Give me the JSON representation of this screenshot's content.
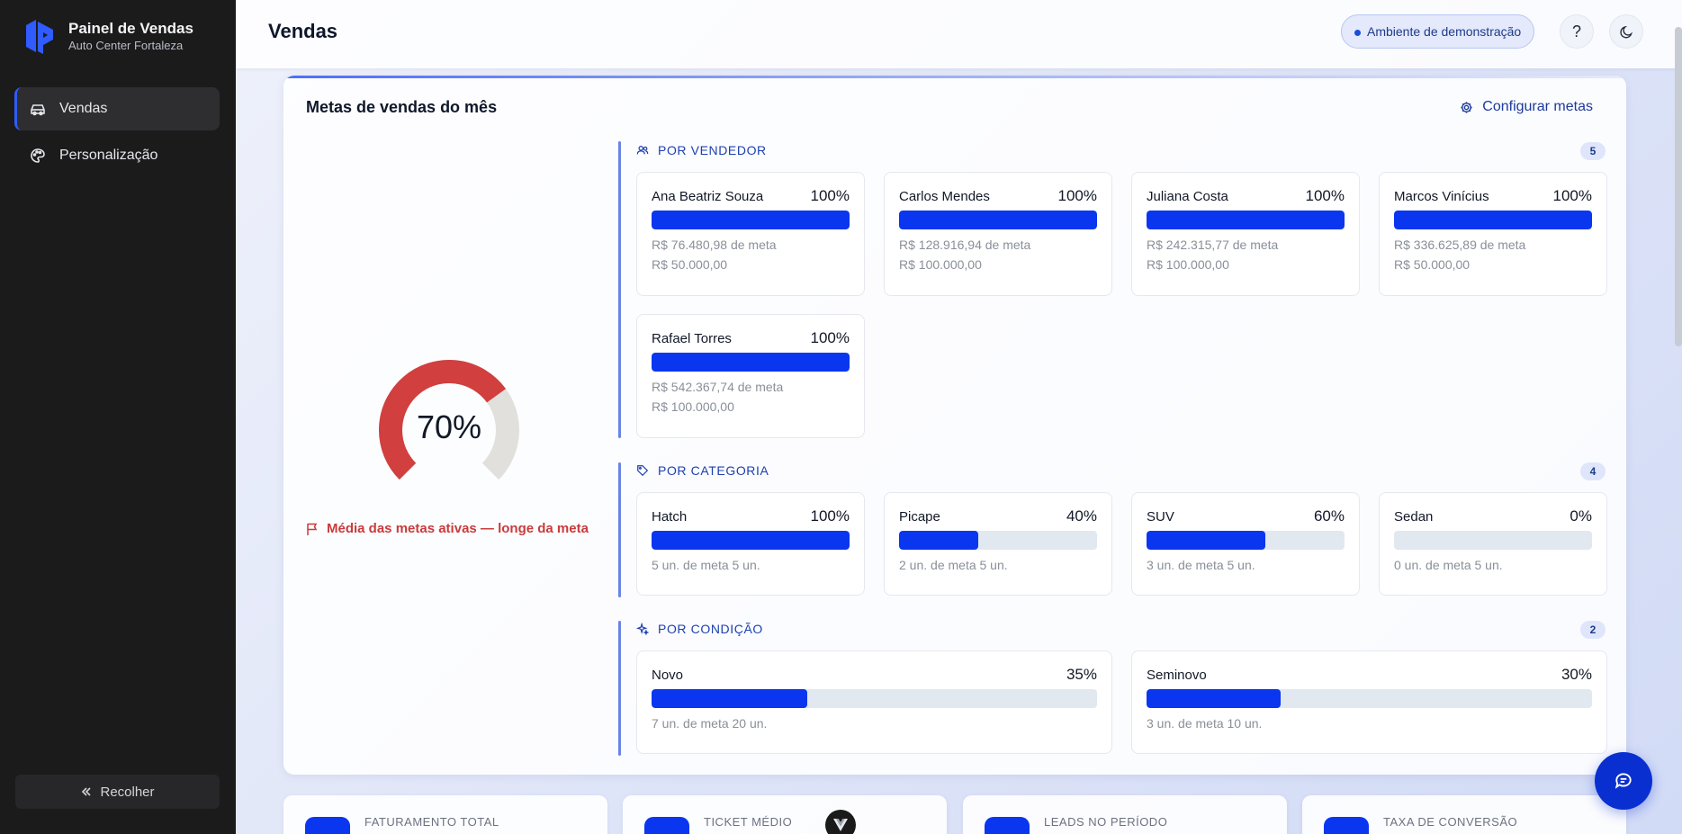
{
  "brand": {
    "title": "Painel de Vendas",
    "subtitle": "Auto Center Fortaleza",
    "icon": "logo-icon"
  },
  "sidebar": {
    "items": [
      {
        "label": "Vendas",
        "icon": "car-icon",
        "active": true
      },
      {
        "label": "Personalização",
        "icon": "palette-icon",
        "active": false
      }
    ],
    "collapse_label": "Recolher"
  },
  "header": {
    "title": "Vendas",
    "env_badge": "Ambiente de demonstração",
    "help_icon": "help-icon",
    "theme_icon": "moon-icon"
  },
  "goals": {
    "title": "Metas de vendas do mês",
    "config_label": "Configurar metas",
    "average_pct": "70%",
    "average_fraction": 0.7,
    "status_text": "Média das metas ativas — longe da meta",
    "colors": {
      "accent": "#0a36ef",
      "gauge_fill": "#d13f3f",
      "gauge_track": "#e2e0dc",
      "status": "#c93b3b"
    },
    "by_seller": {
      "heading": "POR VENDEDOR",
      "count": "5",
      "items": [
        {
          "name": "Ana Beatriz Souza",
          "pct": "100%",
          "fraction": 1.0,
          "line1": "R$ 76.480,98 de meta",
          "line2": "R$ 50.000,00"
        },
        {
          "name": "Carlos Mendes",
          "pct": "100%",
          "fraction": 1.0,
          "line1": "R$ 128.916,94 de meta",
          "line2": "R$ 100.000,00"
        },
        {
          "name": "Juliana Costa",
          "pct": "100%",
          "fraction": 1.0,
          "line1": "R$ 242.315,77 de meta",
          "line2": "R$ 100.000,00"
        },
        {
          "name": "Marcos Vinícius",
          "pct": "100%",
          "fraction": 1.0,
          "line1": "R$ 336.625,89 de meta",
          "line2": "R$ 50.000,00"
        },
        {
          "name": "Rafael Torres",
          "pct": "100%",
          "fraction": 1.0,
          "line1": "R$ 542.367,74 de meta",
          "line2": "R$ 100.000,00"
        }
      ]
    },
    "by_category": {
      "heading": "POR CATEGORIA",
      "count": "4",
      "items": [
        {
          "name": "Hatch",
          "pct": "100%",
          "fraction": 1.0,
          "line1": "5 un. de meta 5 un."
        },
        {
          "name": "Picape",
          "pct": "40%",
          "fraction": 0.4,
          "line1": "2 un. de meta 5 un."
        },
        {
          "name": "SUV",
          "pct": "60%",
          "fraction": 0.6,
          "line1": "3 un. de meta 5 un."
        },
        {
          "name": "Sedan",
          "pct": "0%",
          "fraction": 0.0,
          "line1": "0 un. de meta 5 un."
        }
      ]
    },
    "by_condition": {
      "heading": "POR CONDIÇÃO",
      "count": "2",
      "items": [
        {
          "name": "Novo",
          "pct": "35%",
          "fraction": 0.35,
          "line1": "7 un. de meta 20 un."
        },
        {
          "name": "Seminovo",
          "pct": "30%",
          "fraction": 0.3,
          "line1": "3 un. de meta 10 un."
        }
      ]
    }
  },
  "kpis": [
    {
      "label": "FATURAMENTO TOTAL"
    },
    {
      "label": "TICKET MÉDIO"
    },
    {
      "label": "LEADS NO PERÍODO"
    },
    {
      "label": "TAXA DE CONVERSÃO"
    }
  ]
}
